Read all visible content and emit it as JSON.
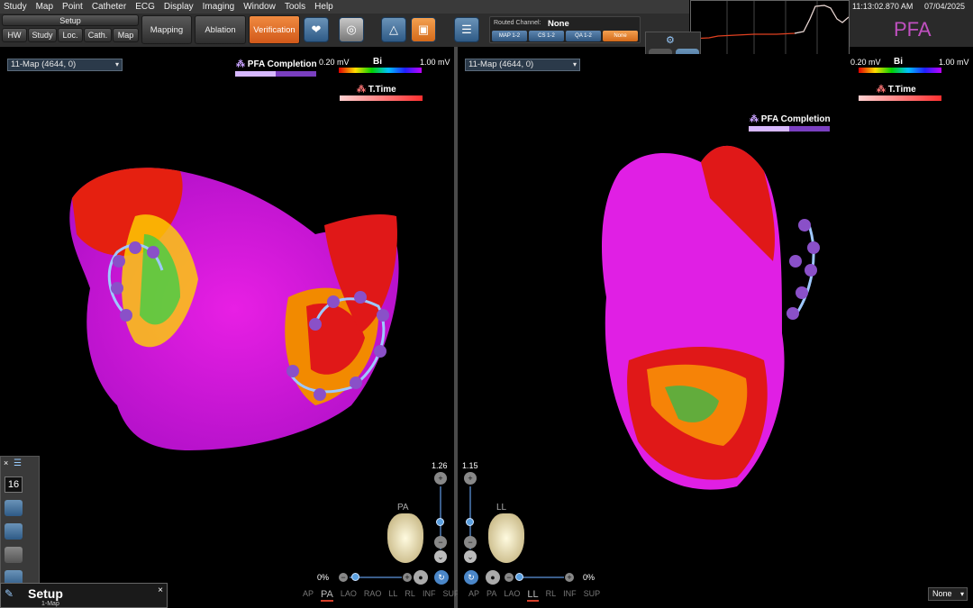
{
  "menu": [
    "Study",
    "Map",
    "Point",
    "Catheter",
    "ECG",
    "Display",
    "Imaging",
    "Window",
    "Tools",
    "Help"
  ],
  "toolbar": {
    "setup_label": "Setup",
    "setup_tabs": [
      "HW",
      "Study",
      "Loc.",
      "Cath.",
      "Map"
    ],
    "workflow": [
      {
        "label": "Mapping",
        "active": false
      },
      {
        "label": "Ablation",
        "active": false
      },
      {
        "label": "Verification",
        "active": true
      }
    ]
  },
  "routed_channel": {
    "label": "Routed Channel:",
    "value": "None",
    "channels": [
      {
        "label": "MAP 1-2",
        "active": false
      },
      {
        "label": "CS 1-2",
        "active": false
      },
      {
        "label": "QA 1-2",
        "active": false
      },
      {
        "label": "None",
        "active": true
      }
    ]
  },
  "status": {
    "clock": "11:13:02.870 AM",
    "date": "07/04/2025",
    "logo": "PFA"
  },
  "left_pane": {
    "map_select": "11-Map (4644, 0)",
    "pfa_legend": "PFA Completion",
    "bi_min": "0.20 mV",
    "bi_label": "Bi",
    "bi_max": "1.00 mV",
    "ttime_label": "T.Time",
    "zoom": "1.26",
    "view": "PA",
    "percent": "0%",
    "views": [
      "AP",
      "PA",
      "LAO",
      "RAO",
      "LL",
      "RL",
      "INF",
      "SUP"
    ],
    "selected_view": "PA"
  },
  "right_pane": {
    "map_select": "11-Map (4644, 0)",
    "pfa_legend": "PFA Completion",
    "bi_min": "0.20 mV",
    "bi_label": "Bi",
    "bi_max": "1.00 mV",
    "ttime_label": "T.Time",
    "zoom": "1.15",
    "view": "LL",
    "percent": "0%",
    "views": [
      "AP",
      "PA",
      "LAO",
      "LL",
      "RL",
      "INF",
      "SUP"
    ],
    "selected_view": "LL"
  },
  "side_panel": {
    "count": "16"
  },
  "setup_window": {
    "title": "Setup",
    "subtitle": "1-Map"
  },
  "bottom_select": "None",
  "colors": {
    "accent_orange": "#e06a22",
    "button_blue": "#3e6b98",
    "magenta": "#e020e0",
    "pfa_purple": "#7a3fc0"
  }
}
